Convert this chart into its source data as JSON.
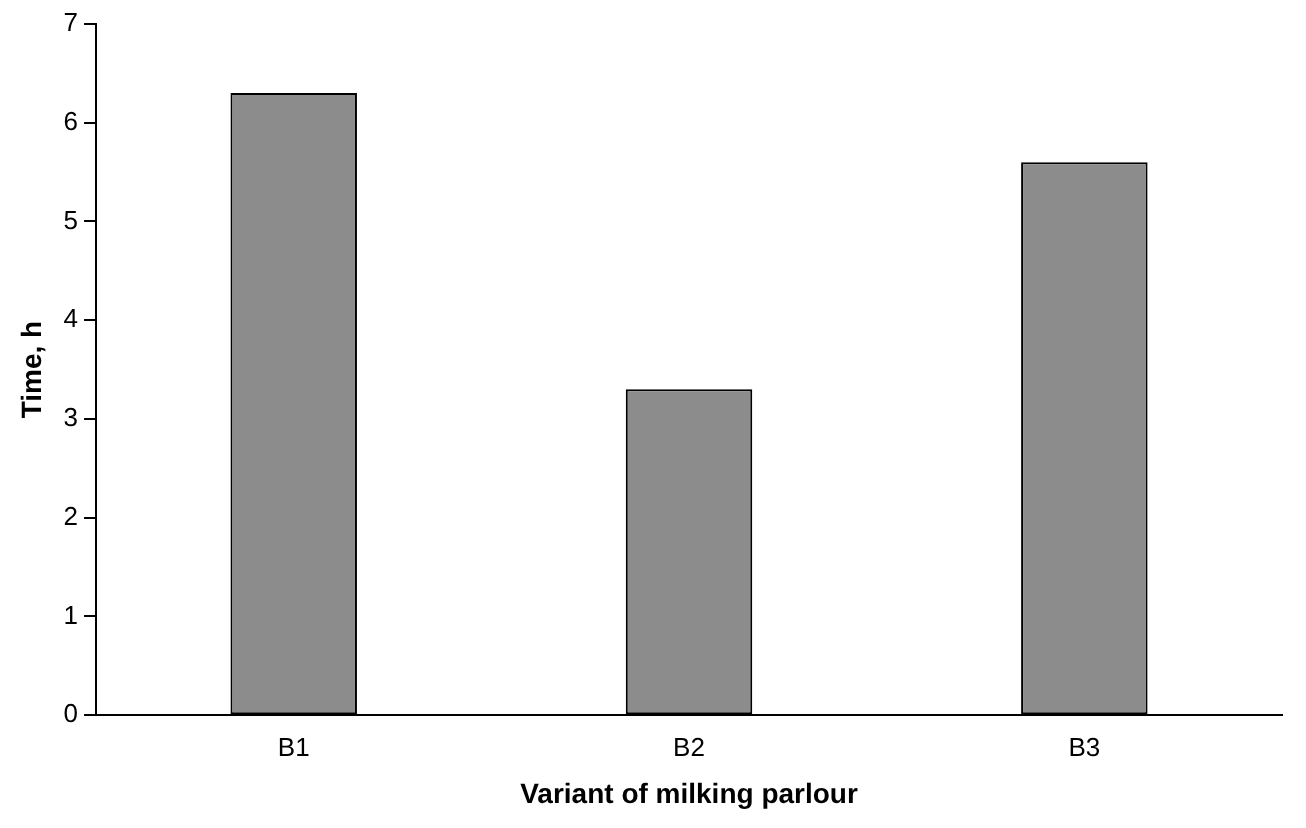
{
  "chart_data": {
    "type": "bar",
    "xlabel": "Variant of milking parlour",
    "ylabel": "Time, h",
    "categories": [
      "B1",
      "B2",
      "B3"
    ],
    "values": [
      6.3,
      3.3,
      5.6
    ],
    "color": "#8c8c8c",
    "ylim": [
      0,
      7
    ],
    "yticks": [
      0,
      1,
      2,
      3,
      4,
      5,
      6,
      7
    ],
    "grid": false,
    "legend": false
  }
}
